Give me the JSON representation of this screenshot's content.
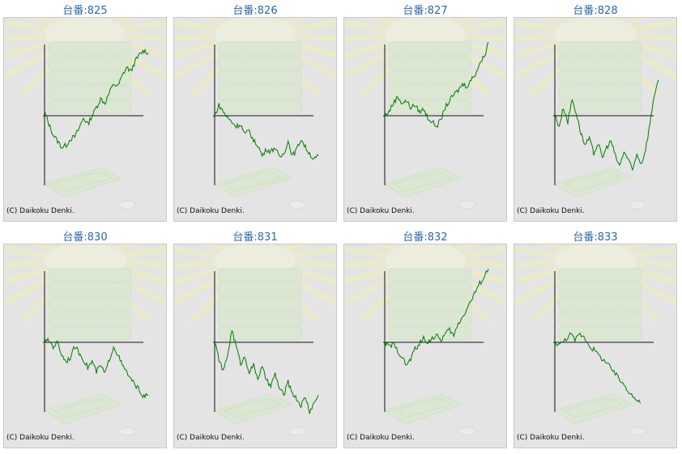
{
  "machines": [
    {
      "title": "台番:825",
      "copyright": "(C) Daikoku Denki.",
      "trend": [
        0.1,
        -0.2,
        -0.45,
        -0.6,
        -0.75,
        -0.7,
        -0.55,
        -0.5,
        -0.3,
        -0.05,
        -0.2,
        0.0,
        0.2,
        0.4,
        0.3,
        0.55,
        0.75,
        0.7,
        0.95,
        1.15,
        1.05,
        1.3,
        1.45,
        1.55,
        1.5
      ]
    },
    {
      "title": "台番:826",
      "copyright": "(C) Daikoku Denki.",
      "trend": [
        0.0,
        0.25,
        0.1,
        -0.05,
        -0.15,
        -0.25,
        -0.2,
        -0.45,
        -0.35,
        -0.6,
        -0.7,
        -0.95,
        -0.8,
        -0.85,
        -0.75,
        -1.0,
        -0.9,
        -0.6,
        -0.95,
        -0.8,
        -0.55,
        -0.75,
        -0.9,
        -1.05,
        -0.95
      ]
    },
    {
      "title": "台番:827",
      "copyright": "(C) Daikoku Denki.",
      "trend": [
        0.0,
        0.1,
        0.3,
        0.45,
        0.3,
        0.35,
        0.2,
        0.25,
        0.1,
        0.15,
        -0.05,
        -0.15,
        -0.25,
        -0.1,
        0.2,
        0.35,
        0.5,
        0.6,
        0.75,
        0.7,
        0.85,
        1.0,
        1.25,
        1.4,
        1.75
      ]
    },
    {
      "title": "台番:828",
      "copyright": "(C) Daikoku Denki.",
      "trend": [
        0.0,
        -0.25,
        0.2,
        -0.15,
        0.4,
        0.05,
        -0.4,
        -0.7,
        -0.55,
        -0.9,
        -0.65,
        -1.0,
        -0.75,
        -0.6,
        -0.95,
        -1.2,
        -0.85,
        -1.05,
        -1.3,
        -0.9,
        -1.15,
        -0.8,
        -0.2,
        0.5,
        0.85
      ]
    },
    {
      "title": "台番:830",
      "copyright": "(C) Daikoku Denki.",
      "trend": [
        0.0,
        0.05,
        -0.1,
        0.0,
        -0.3,
        -0.45,
        -0.35,
        -0.1,
        -0.25,
        -0.4,
        -0.6,
        -0.45,
        -0.7,
        -0.55,
        -0.75,
        -0.4,
        -0.1,
        -0.3,
        -0.55,
        -0.7,
        -0.9,
        -1.0,
        -1.15,
        -1.3,
        -1.25
      ]
    },
    {
      "title": "台番:831",
      "copyright": "(C) Daikoku Denki.",
      "trend": [
        0.0,
        -0.4,
        -0.7,
        -0.3,
        0.3,
        -0.1,
        -0.5,
        -0.35,
        -0.7,
        -0.55,
        -0.85,
        -0.6,
        -0.9,
        -1.05,
        -0.75,
        -1.1,
        -1.25,
        -0.95,
        -1.2,
        -1.35,
        -1.5,
        -1.3,
        -1.65,
        -1.45,
        -1.25
      ]
    },
    {
      "title": "台番:832",
      "copyright": "(C) Daikoku Denki.",
      "trend": [
        0.0,
        -0.1,
        -0.05,
        -0.2,
        -0.35,
        -0.55,
        -0.4,
        -0.15,
        -0.05,
        0.1,
        0.0,
        0.1,
        0.15,
        0.05,
        0.2,
        0.3,
        0.15,
        0.45,
        0.6,
        0.8,
        1.0,
        1.2,
        1.4,
        1.55,
        1.75
      ]
    },
    {
      "title": "台番:833",
      "copyright": "(C) Daikoku Denki.",
      "trend": [
        0.0,
        -0.05,
        0.05,
        0.2,
        0.05,
        0.2,
        0.1,
        -0.1,
        -0.2,
        -0.35,
        -0.45,
        -0.6,
        -0.75,
        -0.9,
        -1.05,
        -1.2,
        -1.35,
        -1.45
      ]
    }
  ],
  "colors": {
    "line": "#007a00",
    "title": "#2a6aa8",
    "axis": "#111111",
    "frame_bg": "#e4e4e4"
  }
}
